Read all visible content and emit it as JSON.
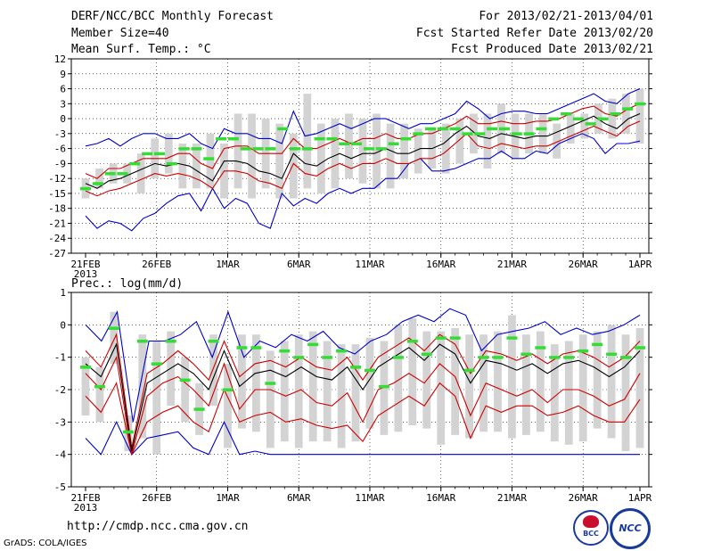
{
  "header": {
    "title": "DERF/NCC/BCC Monthly Forecast",
    "member_size": "Member Size=40",
    "variable_1": "Mean Surf. Temp.: °C",
    "period": "For 2013/02/21-2013/04/01",
    "refer_date": "Fcst Started Refer Date 2013/02/20",
    "produced_date": "Fcst Produced Date 2013/02/21"
  },
  "panel2_label": "Prec.: log(mm/d)",
  "footer": {
    "url": "http://cmdp.ncc.cma.gov.cn",
    "grads_credit": "GrADS: COLA/IGES",
    "logo_bcc": "BCC",
    "logo_ncc": "NCC"
  },
  "colors": {
    "envelope": "#0000cc",
    "spread": "#cc0000",
    "mean": "#000000",
    "member": "#33dd33",
    "box": "#d3d3d3"
  },
  "chart_data": [
    {
      "type": "line",
      "title": "Mean Surf. Temp.: °C",
      "x_tick_labels": [
        "21FEB",
        "26FEB",
        "1MAR",
        "6MAR",
        "11MAR",
        "16MAR",
        "21MAR",
        "26MAR",
        "1APR"
      ],
      "x_year_label": "2013",
      "y_ticks": [
        "12",
        "9",
        "6",
        "3",
        "0",
        "-3",
        "-6",
        "-9",
        "-12",
        "-15",
        "-18",
        "-21",
        "-24",
        "-27"
      ],
      "ylim": [
        -27,
        12
      ],
      "grid": true,
      "days": 40,
      "series": [
        {
          "name": "max",
          "values": [
            -5.5,
            -5,
            -4,
            -5.5,
            -4,
            -3,
            -3,
            -4,
            -4,
            -3,
            -5,
            -6,
            -2,
            -3,
            -3,
            -4,
            -4,
            -5,
            1.5,
            -3.5,
            -3,
            -2,
            -1,
            -2,
            -1,
            0,
            0,
            -1,
            -2,
            -1,
            -1,
            0,
            1,
            3.5,
            2,
            0,
            1,
            1.5,
            1.5,
            1,
            1,
            2,
            3,
            4,
            5,
            3.5,
            3,
            5,
            6
          ]
        },
        {
          "name": "upper",
          "values": [
            -11,
            -12,
            -10,
            -10,
            -9,
            -8,
            -8,
            -8,
            -7,
            -7,
            -9,
            -10,
            -6,
            -5.5,
            -5.5,
            -7,
            -7,
            -7,
            -4,
            -6,
            -6,
            -5,
            -4,
            -5,
            -4,
            -4,
            -3,
            -4,
            -4,
            -3,
            -3,
            -2,
            -1,
            0.5,
            -1,
            -1,
            -0.5,
            -1,
            -1,
            -0.5,
            -0.5,
            0,
            1,
            2,
            2.5,
            1,
            0.5,
            2,
            3
          ]
        },
        {
          "name": "mean",
          "values": [
            -13,
            -14,
            -12.5,
            -12,
            -11,
            -10,
            -9,
            -9.5,
            -9,
            -9.5,
            -11,
            -12.5,
            -8.5,
            -8.5,
            -9,
            -10.5,
            -11,
            -12,
            -7,
            -9,
            -9.5,
            -8,
            -7,
            -8,
            -7,
            -7,
            -6,
            -7,
            -7,
            -6,
            -6,
            -5,
            -3,
            -1.5,
            -3.5,
            -4,
            -3,
            -3.5,
            -4,
            -3.5,
            -3.5,
            -2.5,
            -1.5,
            -0.5,
            0.5,
            -1,
            -2,
            0,
            1
          ]
        },
        {
          "name": "lower",
          "values": [
            -14.5,
            -15.5,
            -14.5,
            -14,
            -13,
            -12,
            -11,
            -11.5,
            -11,
            -11.5,
            -12.5,
            -14,
            -10.5,
            -10.5,
            -11,
            -12.5,
            -13,
            -14,
            -9,
            -11,
            -11.5,
            -10,
            -9,
            -10,
            -9,
            -9,
            -8,
            -9,
            -9,
            -8,
            -8,
            -7,
            -5,
            -3,
            -5.5,
            -6,
            -5,
            -5.5,
            -6,
            -5.5,
            -5.5,
            -4.5,
            -3.5,
            -2.5,
            -1.5,
            -2.5,
            -3.5,
            -1.5,
            -0.5
          ]
        },
        {
          "name": "min",
          "values": [
            -19.5,
            -22,
            -20.5,
            -21,
            -22.5,
            -20,
            -19,
            -17,
            -15.5,
            -15,
            -18.5,
            -14,
            -18,
            -16,
            -17,
            -21,
            -22,
            -15,
            -17.5,
            -16,
            -17,
            -15,
            -14,
            -15,
            -14,
            -14,
            -12,
            -12,
            -9,
            -8,
            -10.5,
            -10.5,
            -10,
            -9,
            -8,
            -8,
            -6.5,
            -8,
            -8,
            -6.5,
            -7,
            -5,
            -4,
            -3,
            -4,
            -7,
            -5,
            -5,
            -4.5
          ]
        },
        {
          "name": "member",
          "values": [
            -14,
            -13,
            -11,
            -11,
            -9,
            -7,
            -7,
            -9,
            -6,
            -6,
            -8,
            -4,
            -4,
            -6,
            -6,
            -6,
            -2,
            -6,
            -6,
            -4,
            -4,
            -5,
            -5,
            -6,
            -6,
            -5,
            -4,
            -3,
            -2,
            -2,
            -2,
            -3,
            -3,
            -2,
            -2,
            -3,
            -3,
            -2,
            0,
            1,
            0,
            -1,
            0,
            1,
            2,
            3
          ]
        },
        {
          "name": "box_hi",
          "values": [
            -12,
            -10,
            -9,
            -9,
            -7,
            -4,
            -3,
            -5,
            -5,
            -3,
            -5,
            1,
            1,
            0,
            -1,
            -3,
            5,
            -1,
            0,
            1,
            0,
            1,
            -1,
            -1,
            -2,
            -2,
            -1,
            0,
            1,
            1,
            3,
            1,
            1,
            1,
            -1,
            1,
            1,
            3,
            4,
            5,
            6
          ]
        },
        {
          "name": "box_lo",
          "values": [
            -16,
            -14,
            -13,
            -13,
            -15,
            -12,
            -11,
            -14,
            -14,
            -14,
            -16,
            -14,
            -16,
            -14,
            -16,
            -16,
            -14,
            -15,
            -14,
            -12,
            -13,
            -14,
            -14,
            -12,
            -11,
            -10,
            -11,
            -9,
            -7,
            -10,
            -7,
            -8,
            -7,
            -7,
            -8,
            -5,
            -4,
            -3,
            -4,
            -3,
            -5
          ]
        }
      ]
    },
    {
      "type": "line",
      "title": "Prec.: log(mm/d)",
      "x_tick_labels": [
        "21FEB",
        "26FEB",
        "1MAR",
        "6MAR",
        "11MAR",
        "16MAR",
        "21MAR",
        "26MAR",
        "1APR"
      ],
      "x_year_label": "2013",
      "y_ticks": [
        "1",
        "0",
        "-1",
        "-2",
        "-3",
        "-4",
        "-5"
      ],
      "ylim": [
        -5,
        1
      ],
      "grid": true,
      "days": 40,
      "series": [
        {
          "name": "max",
          "values": [
            0,
            -0.5,
            0.4,
            -3,
            -0.5,
            -0.5,
            -0.3,
            0.1,
            -1,
            0.4,
            -1,
            -0.5,
            -0.7,
            -0.3,
            -0.5,
            -0.2,
            -0.7,
            -0.9,
            -0.5,
            -0.3,
            0.1,
            0.3,
            0.1,
            0.5,
            0.3,
            -0.8,
            -0.3,
            -0.2,
            -0.1,
            0.1,
            -0.3,
            -0.1,
            -0.3,
            -0.2,
            0,
            0.3
          ]
        },
        {
          "name": "upper",
          "values": [
            -0.8,
            -1.3,
            -0.3,
            -3.8,
            -1.5,
            -1.2,
            -0.8,
            -1.2,
            -1.7,
            -0.5,
            -1.6,
            -1.2,
            -1.1,
            -1.3,
            -1,
            -1.3,
            -1.4,
            -1,
            -1.7,
            -1,
            -0.7,
            -0.4,
            -0.8,
            -0.3,
            -0.6,
            -1.5,
            -0.8,
            -0.9,
            -1.1,
            -0.9,
            -1.2,
            -0.9,
            -0.8,
            -1,
            -1.3,
            -1,
            -0.5
          ]
        },
        {
          "name": "mean",
          "values": [
            -1.2,
            -1.6,
            -0.6,
            -3.9,
            -1.8,
            -1.5,
            -1.2,
            -1.5,
            -2,
            -0.8,
            -1.9,
            -1.5,
            -1.4,
            -1.6,
            -1.3,
            -1.6,
            -1.7,
            -1.3,
            -2,
            -1.3,
            -1,
            -0.7,
            -1.1,
            -0.6,
            -0.9,
            -1.8,
            -1.1,
            -1.2,
            -1.4,
            -1.2,
            -1.5,
            -1.2,
            -1.1,
            -1.3,
            -1.6,
            -1.3,
            -0.8
          ]
        },
        {
          "name": "lower",
          "values": [
            -1.5,
            -2,
            -1,
            -4,
            -2.2,
            -1.8,
            -1.6,
            -2,
            -2.5,
            -1.2,
            -2.6,
            -2,
            -2,
            -2.2,
            -2,
            -2.4,
            -2.5,
            -2.1,
            -3,
            -2,
            -1.8,
            -1.5,
            -1.8,
            -1.2,
            -1.6,
            -2.8,
            -1.8,
            -2,
            -2.2,
            -2,
            -2.4,
            -2,
            -2,
            -2.2,
            -2.5,
            -2.3,
            -1.5
          ]
        },
        {
          "name": "lowest",
          "values": [
            -2.2,
            -2.7,
            -1.8,
            -4,
            -3,
            -2.7,
            -2.5,
            -3,
            -3.3,
            -2,
            -3,
            -2.8,
            -2.7,
            -3,
            -2.9,
            -3.1,
            -3.2,
            -3.1,
            -3.6,
            -2.8,
            -2.5,
            -2.2,
            -2.5,
            -1.8,
            -2.2,
            -3.5,
            -2.5,
            -2.7,
            -2.5,
            -2.5,
            -2.8,
            -2.7,
            -2.5,
            -2.8,
            -3,
            -3,
            -2.3
          ]
        },
        {
          "name": "min",
          "values": [
            -3.5,
            -4,
            -3,
            -4,
            -3.5,
            -3.4,
            -3.3,
            -3.8,
            -4,
            -3,
            -4,
            -3.9,
            -4,
            -4,
            -4,
            -4,
            -4,
            -4,
            -4,
            -4,
            -4,
            -4,
            -4,
            -4,
            -4,
            -4,
            -4,
            -4,
            -4,
            -4,
            -4,
            -4,
            -4,
            -4,
            -4,
            -4,
            -4
          ]
        },
        {
          "name": "member",
          "values": [
            -1.3,
            -1.9,
            -0.1,
            -3.3,
            -0.5,
            -1.2,
            -0.5,
            -1.7,
            -2.6,
            -0.5,
            -2,
            -0.7,
            -0.7,
            -1.8,
            -0.8,
            -1,
            -0.6,
            -1,
            -0.8,
            -1.3,
            -1.4,
            -1.9,
            -1,
            -0.5,
            -0.9,
            -0.4,
            -0.4,
            -1.4,
            -1,
            -1,
            -0.4,
            -0.9,
            -0.7,
            -1,
            -1,
            -0.8,
            -0.6,
            -0.9,
            -1,
            -0.7
          ]
        },
        {
          "name": "box_hi",
          "values": [
            -1,
            -1.3,
            0.4,
            -2.8,
            -0.3,
            -0.5,
            -0.2,
            -1,
            -1.8,
            -0.3,
            -1.2,
            -0.3,
            -0.3,
            -0.8,
            -0.5,
            -0.3,
            -0.2,
            -0.5,
            -0.6,
            -0.6,
            -0.4,
            -0.5,
            0,
            0.2,
            -0.2,
            -0.2,
            -0.1,
            -0.3,
            -0.3,
            -0.2,
            0.3,
            -0.3,
            -0.2,
            -0.6,
            -0.5,
            -0.3,
            -0.2,
            0,
            -0.3,
            -0.1
          ]
        },
        {
          "name": "box_lo",
          "values": [
            -2.8,
            -3,
            -1.2,
            -3.9,
            -3.5,
            -4,
            -2.5,
            -3,
            -3.4,
            -2.5,
            -3.8,
            -3.2,
            -3.3,
            -3.8,
            -3.6,
            -3.8,
            -3.6,
            -3.6,
            -3.8,
            -3.6,
            -3.2,
            -3.4,
            -3.3,
            -3.1,
            -3.2,
            -3.7,
            -3.4,
            -3.5,
            -3.3,
            -3.3,
            -3.5,
            -3.4,
            -3.3,
            -3.6,
            -3.7,
            -3.6,
            -3.2,
            -3.5,
            -3.9,
            -3.8
          ]
        }
      ]
    }
  ]
}
